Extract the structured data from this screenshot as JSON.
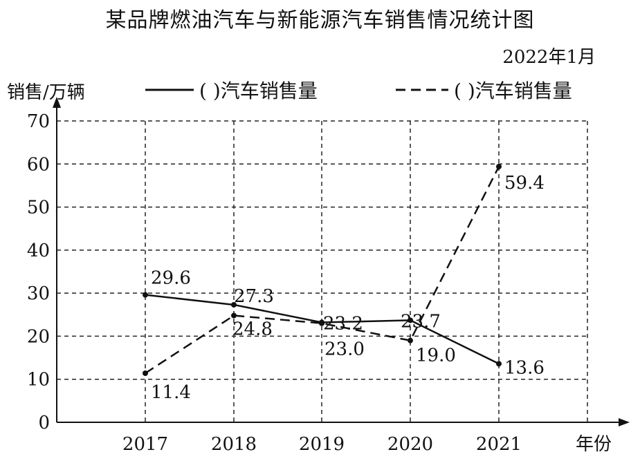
{
  "title": "某品牌燃油汽车与新能源汽车销售情况统计图",
  "date_note": "2022年1月",
  "chart_data": {
    "type": "line",
    "ylabel": "销售/万辆",
    "xlabel": "年份",
    "categories": [
      "2017",
      "2018",
      "2019",
      "2020",
      "2021"
    ],
    "y_ticks": [
      0,
      10,
      20,
      30,
      40,
      50,
      60,
      70
    ],
    "ylim": [
      0,
      70
    ],
    "grid": true,
    "legend_position": "top",
    "series": [
      {
        "name": "(    )汽车销售量",
        "style": "solid",
        "values": [
          29.6,
          27.3,
          23.2,
          23.7,
          13.6
        ],
        "labels": [
          "29.6",
          "27.3",
          "23.2",
          "23.7",
          "13.6"
        ]
      },
      {
        "name": "(    )汽车销售量",
        "style": "dashed",
        "values": [
          11.4,
          24.8,
          23.0,
          19.0,
          59.4
        ],
        "labels": [
          "11.4",
          "24.8",
          "23.0",
          "19.0",
          "59.4"
        ]
      }
    ]
  }
}
